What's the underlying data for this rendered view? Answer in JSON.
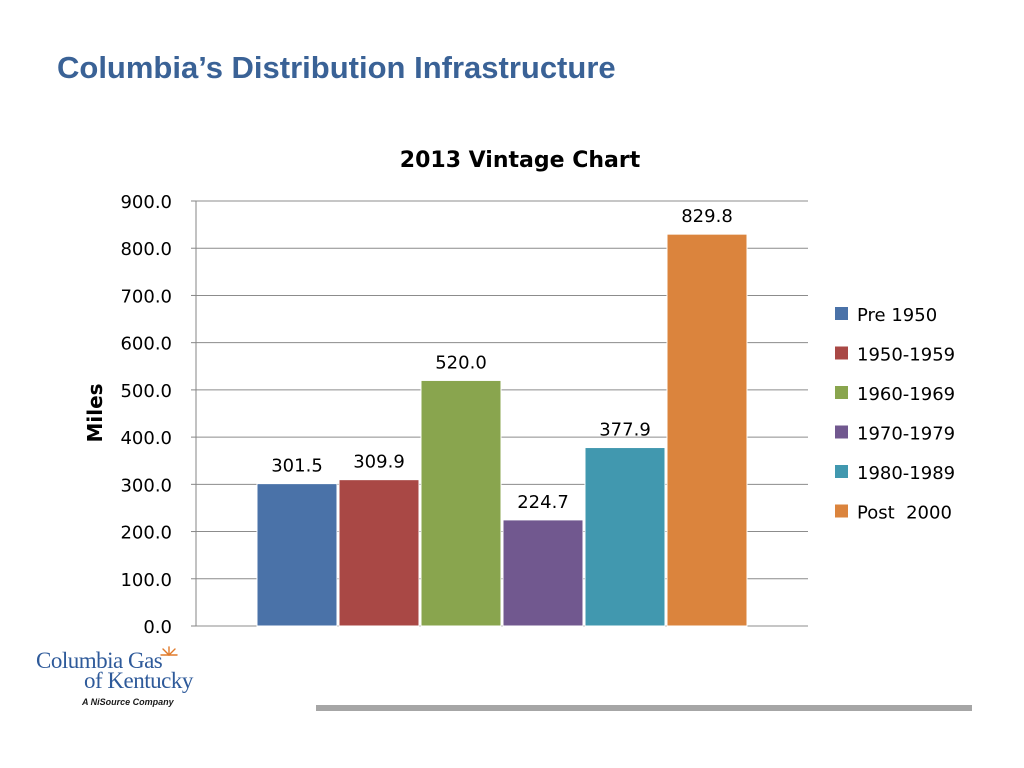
{
  "slide": {
    "title": "Columbia’s Distribution Infrastructure"
  },
  "logo": {
    "line1": "Columbia Gas",
    "line2": "of Kentucky",
    "tagline": "A NiSource Company"
  },
  "chart_data": {
    "type": "bar",
    "title": "2013 Vintage Chart",
    "xlabel": "",
    "ylabel": "Miles",
    "ylim": [
      0,
      900
    ],
    "ytick_step": 100,
    "ytick_labels": [
      "0.0",
      "100.0",
      "200.0",
      "300.0",
      "400.0",
      "500.0",
      "600.0",
      "700.0",
      "800.0",
      "900.0"
    ],
    "grid": true,
    "legend_position": "right",
    "series": [
      {
        "name": "Pre 1950",
        "value": 301.5,
        "label": "301.5",
        "color": "#4a72a8"
      },
      {
        "name": "1950-1959",
        "value": 309.9,
        "label": "309.9",
        "color": "#a94845"
      },
      {
        "name": "1960-1969",
        "value": 520.0,
        "label": "520.0",
        "color": "#89a54e"
      },
      {
        "name": "1970-1979",
        "value": 224.7,
        "label": "224.7",
        "color": "#71588f"
      },
      {
        "name": "1980-1989",
        "value": 377.9,
        "label": "377.9",
        "color": "#4198af"
      },
      {
        "name": "Post  2000",
        "value": 829.8,
        "label": "829.8",
        "color": "#db843d"
      }
    ]
  }
}
